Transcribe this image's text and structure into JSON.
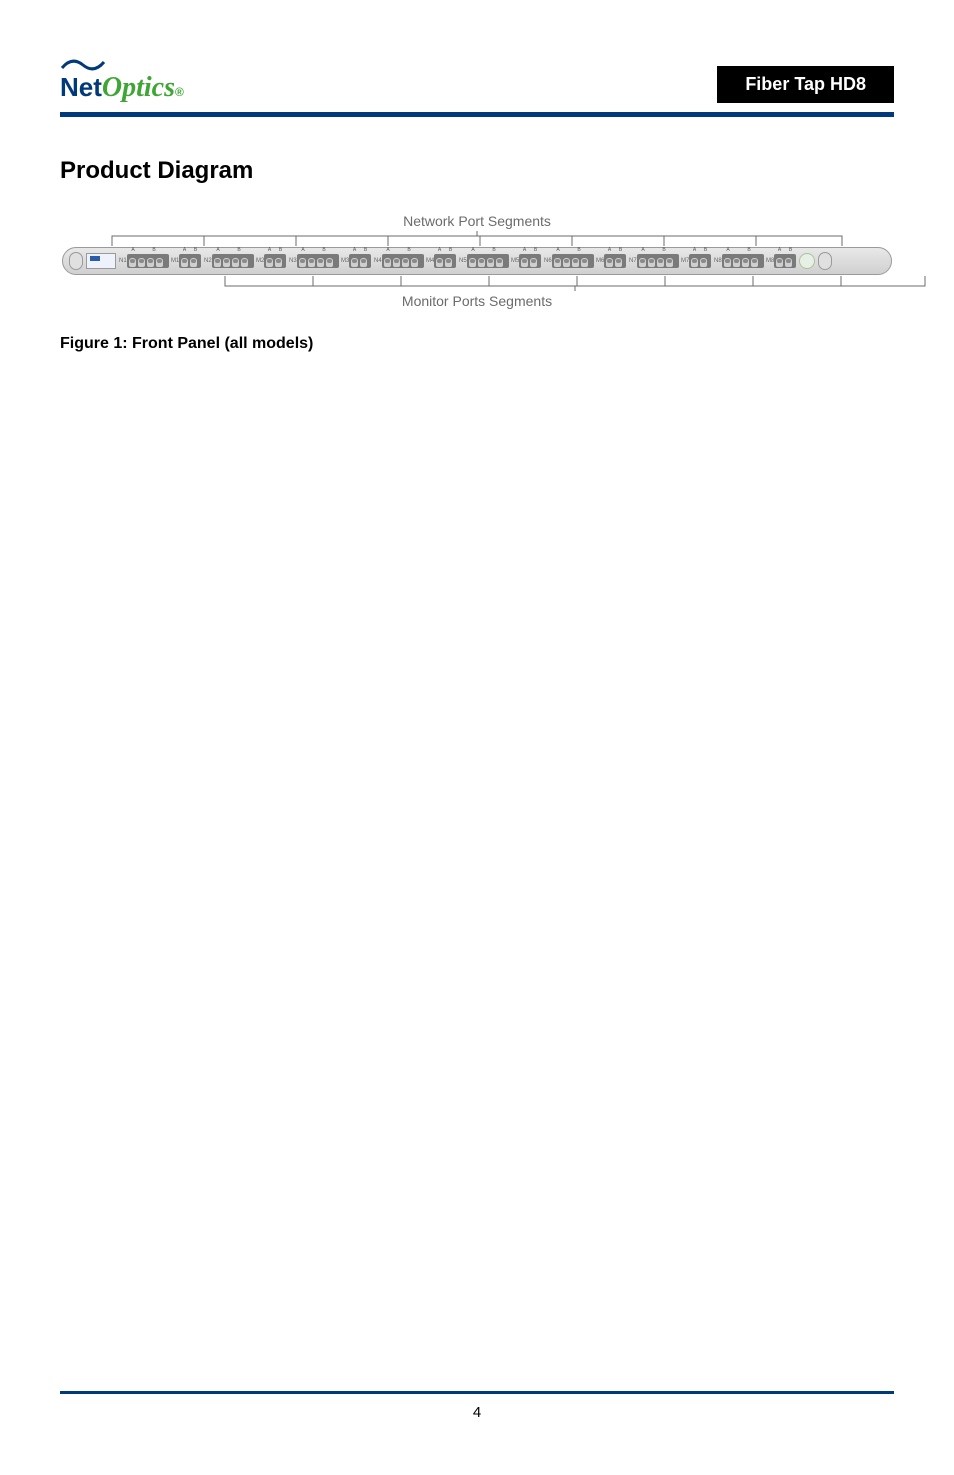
{
  "header": {
    "logo_net": "Net",
    "logo_optics": "Optics",
    "logo_reg": "®",
    "product_name": "Fiber Tap HD8",
    "logo_colors": {
      "net": "#003a7a",
      "optics": "#3fa535"
    }
  },
  "section": {
    "title": "Product Diagram"
  },
  "diagram": {
    "top_label": "Network Port Segments",
    "bottom_label": "Monitor Ports Segments",
    "segments": [
      {
        "num": "N1",
        "mon": "M1"
      },
      {
        "num": "N2",
        "mon": "M2"
      },
      {
        "num": "N3",
        "mon": "M3"
      },
      {
        "num": "N4",
        "mon": "M4"
      },
      {
        "num": "N5",
        "mon": "M5"
      },
      {
        "num": "N6",
        "mon": "M6"
      },
      {
        "num": "N7",
        "mon": "M7"
      },
      {
        "num": "N8",
        "mon": "M8"
      }
    ],
    "net_port_labels": [
      "A",
      "",
      "B",
      ""
    ],
    "mon_port_labels": [
      "A",
      "B"
    ],
    "panel_bg": "#e8e8e8",
    "bracket_color": "#6b6b6b"
  },
  "figure": {
    "number": "Figure 1: ",
    "text": "Front Panel (all models)"
  },
  "footer": {
    "page": "4"
  }
}
